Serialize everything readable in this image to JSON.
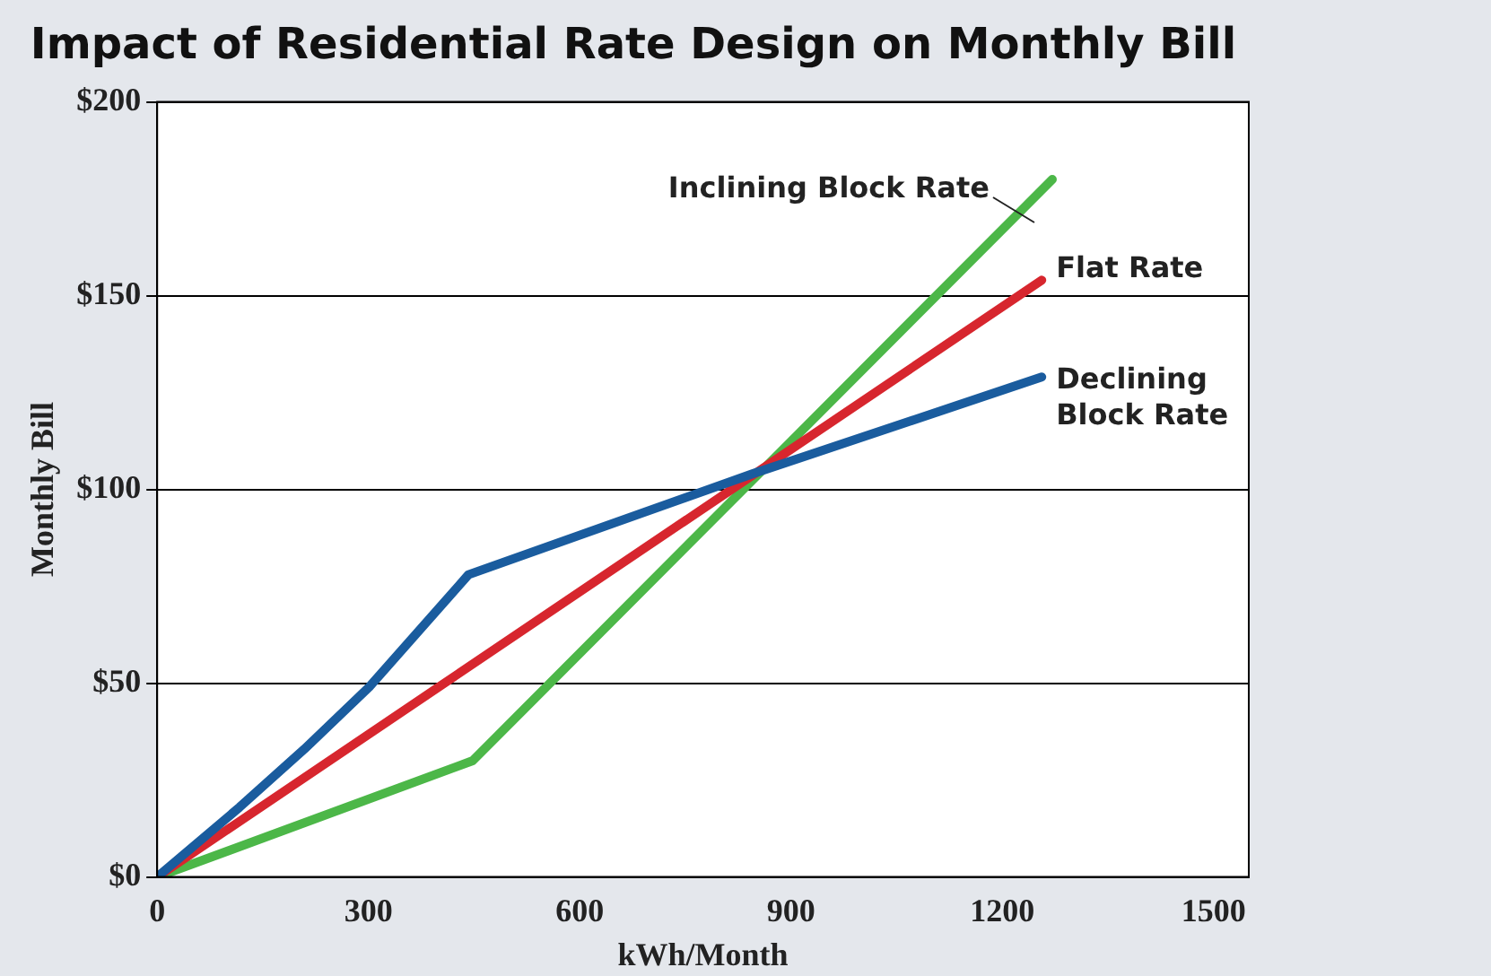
{
  "chart_data": {
    "type": "line",
    "title": "Impact of Residential Rate Design on Monthly Bill",
    "xlabel": "kWh/Month",
    "ylabel": "Monthly Bill",
    "xlim": [
      0,
      1550
    ],
    "xticks": [
      0,
      300,
      600,
      900,
      1200,
      1500
    ],
    "ylim": [
      0,
      200
    ],
    "yticks": [
      {
        "value": 0,
        "label": "$0"
      },
      {
        "value": 50,
        "label": "$50"
      },
      {
        "value": 100,
        "label": "$100"
      },
      {
        "value": 150,
        "label": "$150"
      },
      {
        "value": 200,
        "label": "$200"
      }
    ],
    "grid": "y",
    "marker": "none",
    "line_style": "solid",
    "series": [
      {
        "name": "Declining Block Rate",
        "color": "#1a5c9e",
        "x": [
          0,
          117,
          209,
          301,
          442,
          845,
          1256
        ],
        "values": [
          0,
          18,
          33,
          49,
          78,
          104,
          129
        ]
      },
      {
        "name": "Flat Rate",
        "color": "#d7262e",
        "x": [
          0,
          1256
        ],
        "values": [
          0,
          154
        ]
      },
      {
        "name": "Inclining Block Rate",
        "color": "#4cb748",
        "x": [
          0,
          448,
          1271
        ],
        "values": [
          0,
          30,
          180
        ]
      }
    ]
  }
}
